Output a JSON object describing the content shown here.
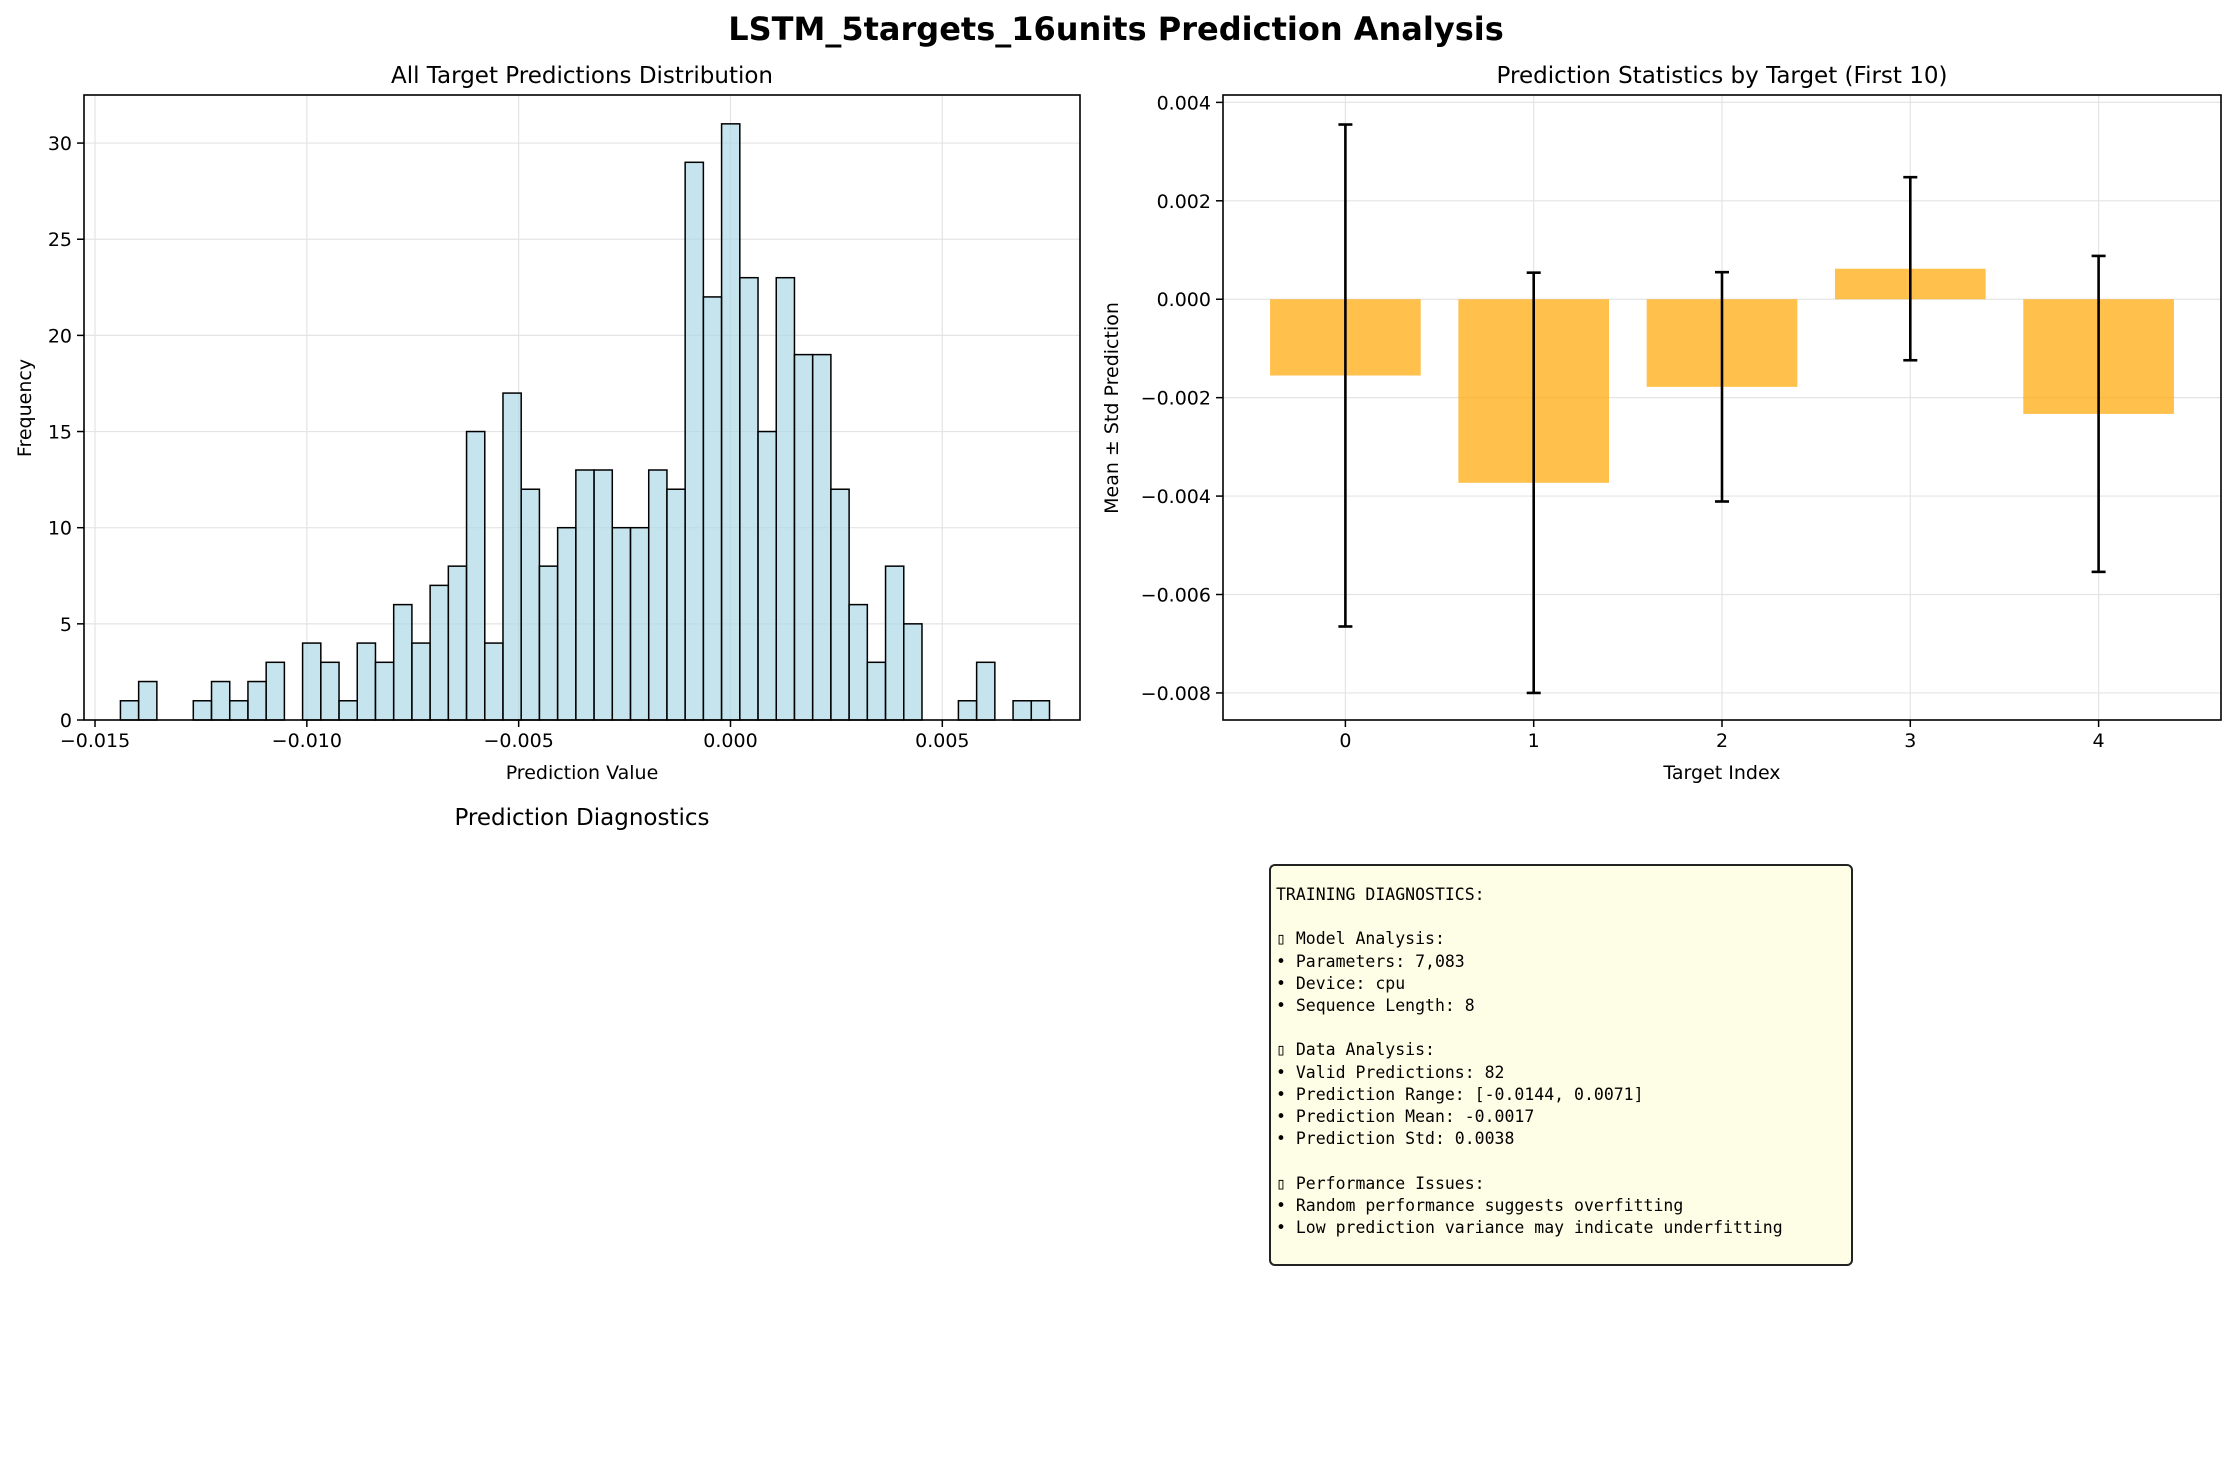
{
  "figure_title": "LSTM_5targets_16units Prediction Analysis",
  "diagnostics_panel_title": "Prediction Diagnostics",
  "chart_data": [
    {
      "type": "bar",
      "title": "All Target Predictions Distribution",
      "xlabel": "Prediction Value",
      "ylabel": "Frequency",
      "xlim": [
        -0.01526,
        0.00825
      ],
      "ylim": [
        0,
        32.5
      ],
      "bin_start": -0.0144,
      "bin_width": 0.00043,
      "counts": [
        1,
        2,
        0,
        0,
        1,
        2,
        1,
        2,
        3,
        0,
        4,
        3,
        1,
        4,
        3,
        6,
        4,
        7,
        8,
        15,
        4,
        17,
        12,
        8,
        10,
        13,
        13,
        10,
        10,
        13,
        12,
        29,
        22,
        31,
        23,
        15,
        23,
        19,
        19,
        12,
        6,
        3,
        8,
        5,
        0,
        0,
        1,
        3,
        0,
        1,
        1
      ],
      "xticks": [
        -0.015,
        -0.01,
        -0.005,
        0.0,
        0.005
      ],
      "xtick_labels": [
        "−0.015",
        "−0.010",
        "−0.005",
        "0.000",
        "0.005"
      ],
      "yticks": [
        0,
        5,
        10,
        15,
        20,
        25,
        30
      ],
      "ytick_labels": [
        "0",
        "5",
        "10",
        "15",
        "20",
        "25",
        "30"
      ],
      "bar_color": "#add8e6",
      "edge_color": "#000000",
      "grid": true
    },
    {
      "type": "bar",
      "title": "Prediction Statistics by Target (First 10)",
      "xlabel": "Target Index",
      "ylabel": "Mean ± Std Prediction",
      "categories": [
        "0",
        "1",
        "2",
        "3",
        "4"
      ],
      "means": [
        -0.00155,
        -0.00373,
        -0.00178,
        0.00062,
        -0.00233
      ],
      "stds": [
        0.0051,
        0.00427,
        0.00233,
        0.00186,
        0.00321
      ],
      "xlim": [
        -0.65,
        4.65
      ],
      "ylim": [
        -0.00855,
        0.00415
      ],
      "yticks": [
        0.004,
        0.002,
        0.0,
        -0.002,
        -0.004,
        -0.006,
        -0.008
      ],
      "ytick_labels": [
        "0.004",
        "0.002",
        "0.000",
        "−0.002",
        "−0.004",
        "−0.006",
        "−0.008"
      ],
      "bar_color": "#ffa500",
      "grid": true
    }
  ],
  "diagnostics_lines": [
    "TRAINING DIAGNOSTICS:",
    "",
    "▯ Model Analysis:",
    "• Parameters: 7,083",
    "• Device: cpu",
    "• Sequence Length: 8",
    "",
    "▯ Data Analysis:",
    "• Valid Predictions: 82",
    "• Prediction Range: [-0.0144, 0.0071]",
    "• Prediction Mean: -0.0017",
    "• Prediction Std: 0.0038",
    "",
    "▯ Performance Issues:",
    "• Random performance suggests overfitting",
    "• Low prediction variance may indicate underfitting"
  ]
}
